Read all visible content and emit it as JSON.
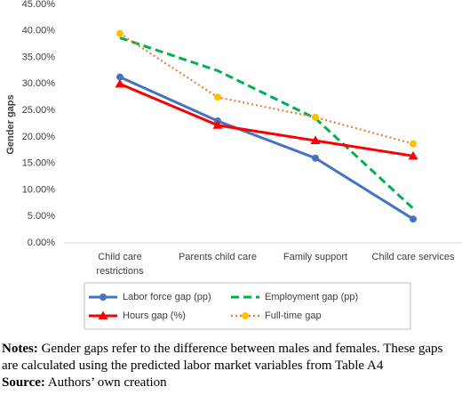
{
  "chart_data": {
    "type": "line",
    "ylabel": "Gender gaps",
    "categories": [
      "Child care restrictions",
      "Parents child care",
      "Family support",
      "Child care services"
    ],
    "ylim": [
      0,
      45
    ],
    "yticks": [
      {
        "value": 0,
        "label": "0.00%"
      },
      {
        "value": 5,
        "label": "5.00%"
      },
      {
        "value": 10,
        "label": "10.00%"
      },
      {
        "value": 15,
        "label": "15.00%"
      },
      {
        "value": 20,
        "label": "20.00%"
      },
      {
        "value": 25,
        "label": "25.00%"
      },
      {
        "value": 30,
        "label": "30.00%"
      },
      {
        "value": 35,
        "label": "35.00%"
      },
      {
        "value": 40,
        "label": "40.00%"
      },
      {
        "value": 45,
        "label": "45.00%"
      }
    ],
    "grid": false,
    "series": [
      {
        "name": "Labor force gap (pp)",
        "color": "#4472c4",
        "style": "solid",
        "marker": "circle",
        "values": [
          31.3,
          23.0,
          16.0,
          4.5
        ]
      },
      {
        "name": "Employment gap (pp)",
        "color": "#00b050",
        "style": "dashed",
        "marker": "none",
        "values": [
          38.7,
          32.5,
          23.5,
          6.5
        ]
      },
      {
        "name": "Hours gap (%)",
        "color": "#ff0000",
        "style": "solid",
        "marker": "triangle",
        "values": [
          30.0,
          22.2,
          19.3,
          16.4
        ]
      },
      {
        "name": "Full-time gap",
        "color": "#ed7d31",
        "marker_color": "#ffc000",
        "style": "dotted",
        "marker": "circle",
        "values": [
          39.5,
          27.5,
          23.7,
          18.7
        ]
      }
    ]
  },
  "notes": {
    "label": "Notes:",
    "text": "Gender gaps refer to the difference between males and females. These gaps are calculated using the predicted labor market variables from Table A4"
  },
  "source": {
    "label": "Source:",
    "text": "Authors’ own creation"
  }
}
